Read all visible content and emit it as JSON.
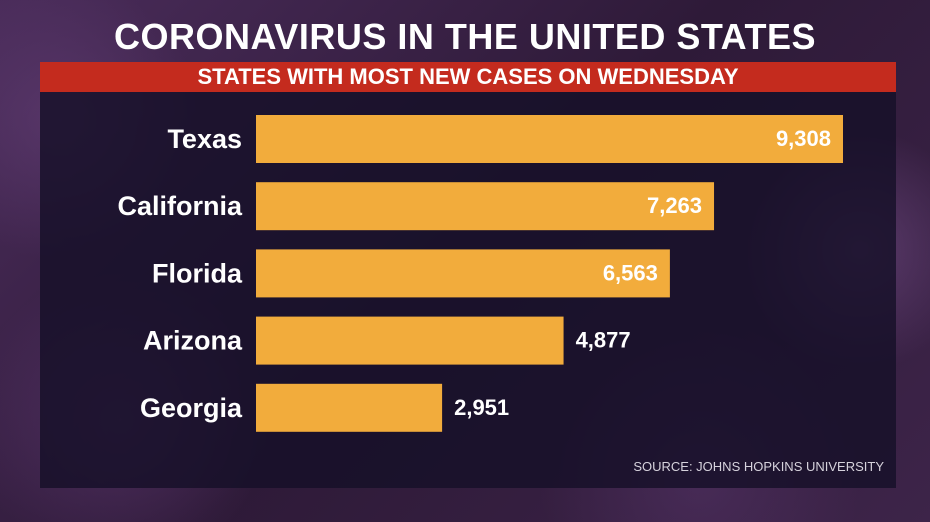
{
  "header": {
    "title": "CORONAVIRUS IN THE UNITED STATES",
    "subtitle": "STATES WITH MOST NEW CASES ON WEDNESDAY"
  },
  "footer": {
    "source": "SOURCE: JOHNS HOPKINS UNIVERSITY"
  },
  "colors": {
    "bar": "#f2ac3c",
    "subtitle_bar": "#c42b1e",
    "label": "#ffffff"
  },
  "chart_data": {
    "type": "bar",
    "orientation": "horizontal",
    "categories": [
      "Texas",
      "California",
      "Florida",
      "Arizona",
      "Georgia"
    ],
    "values": [
      9308,
      7263,
      6563,
      4877,
      2951
    ],
    "value_labels": [
      "9,308",
      "7,263",
      "6,563",
      "4,877",
      "2,951"
    ],
    "xlim": [
      0,
      9308
    ],
    "grid": false,
    "legend": "none"
  }
}
